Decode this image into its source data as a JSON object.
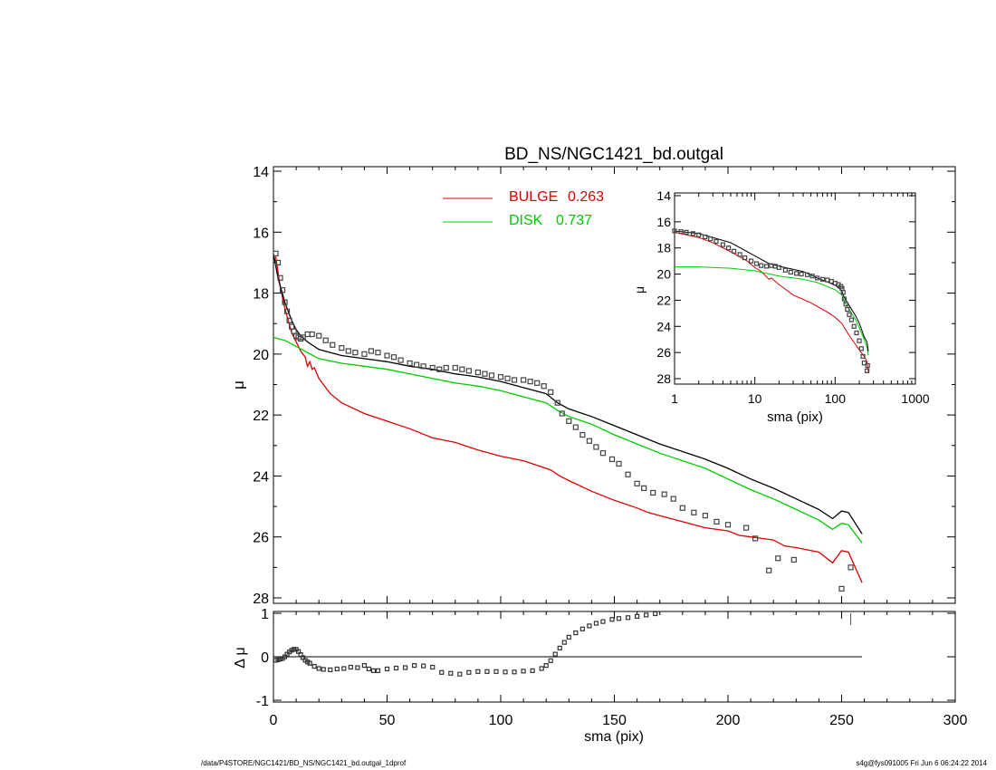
{
  "footer": {
    "path": "/data/P4STORE/NGC1421/BD_NS/NGC1421_bd.outgal_1dprof",
    "stamp": "s4g@fys091005  Fri Jun  6 06:24:22 2014"
  },
  "chart_data": [
    {
      "id": "main",
      "type": "line",
      "title": "BD_NS/NGC1421_bd.outgal",
      "xlabel": "",
      "ylabel": "μ",
      "xlim": [
        0,
        300
      ],
      "ylim": [
        28,
        14
      ],
      "y_inverted": true,
      "yticks": [
        14,
        16,
        18,
        20,
        22,
        24,
        26,
        28
      ],
      "grid": false,
      "legend_position": "top-center",
      "legend": [
        {
          "label": "BULGE",
          "value": "0.263",
          "color": "#dd0000"
        },
        {
          "label": "DISK",
          "value": "0.737",
          "color": "#00cc00"
        }
      ],
      "series": [
        {
          "name": "BULGE",
          "color": "#dd0000",
          "style": "line",
          "x": [
            1,
            3,
            5,
            8,
            10,
            12,
            14,
            15,
            16,
            17,
            18,
            20,
            25,
            30,
            40,
            50,
            60,
            70,
            80,
            90,
            100,
            110,
            122,
            126,
            130,
            140,
            150,
            160,
            165,
            170,
            180,
            190,
            200,
            205,
            210,
            215,
            220,
            225,
            230,
            240,
            246,
            250,
            253,
            259
          ],
          "y": [
            16.8,
            17.8,
            18.5,
            19.3,
            19.6,
            19.9,
            20.1,
            20.4,
            20.25,
            20.5,
            20.45,
            20.8,
            21.3,
            21.6,
            21.95,
            22.2,
            22.45,
            22.75,
            22.9,
            23.15,
            23.35,
            23.5,
            23.8,
            24.0,
            24.15,
            24.5,
            24.8,
            25.05,
            25.2,
            25.3,
            25.5,
            25.7,
            25.8,
            25.95,
            26.0,
            26.05,
            26.1,
            26.3,
            26.35,
            26.5,
            26.85,
            26.45,
            26.5,
            27.5
          ]
        },
        {
          "name": "DISK",
          "color": "#00cc00",
          "style": "line",
          "x": [
            0,
            5,
            10,
            15,
            20,
            30,
            40,
            50,
            60,
            70,
            80,
            90,
            100,
            110,
            120,
            125,
            130,
            140,
            150,
            160,
            170,
            180,
            190,
            200,
            210,
            220,
            230,
            240,
            246,
            250,
            253,
            259
          ],
          "y": [
            19.45,
            19.55,
            19.75,
            19.95,
            20.15,
            20.3,
            20.4,
            20.5,
            20.65,
            20.8,
            20.95,
            21.05,
            21.2,
            21.4,
            21.6,
            21.85,
            22.05,
            22.3,
            22.65,
            22.95,
            23.25,
            23.5,
            23.75,
            24.1,
            24.45,
            24.75,
            25.1,
            25.45,
            25.75,
            25.55,
            25.6,
            26.2
          ]
        },
        {
          "name": "",
          "color": "#000000",
          "style": "line",
          "x": [
            0,
            2,
            5,
            8,
            10,
            12,
            15,
            20,
            30,
            40,
            50,
            60,
            70,
            80,
            90,
            100,
            110,
            120,
            125,
            130,
            140,
            150,
            160,
            170,
            180,
            190,
            200,
            210,
            220,
            230,
            240,
            246,
            250,
            253,
            259
          ],
          "y": [
            16.7,
            17.5,
            18.3,
            18.9,
            19.2,
            19.4,
            19.6,
            19.85,
            20.05,
            20.15,
            20.25,
            20.4,
            20.5,
            20.65,
            20.75,
            20.9,
            21.1,
            21.3,
            21.6,
            21.8,
            22.05,
            22.35,
            22.65,
            22.95,
            23.2,
            23.45,
            23.75,
            24.1,
            24.4,
            24.75,
            25.1,
            25.4,
            25.15,
            25.2,
            25.9
          ]
        },
        {
          "name": "",
          "color": "#444444",
          "style": "markers",
          "x": [
            1,
            2,
            3,
            4,
            5,
            6,
            7,
            8,
            9,
            10,
            11,
            12,
            13,
            15,
            17,
            20,
            23,
            26,
            30,
            33,
            36,
            40,
            43,
            46,
            50,
            53,
            56,
            60,
            63,
            66,
            70,
            73,
            76,
            80,
            83,
            86,
            90,
            93,
            96,
            100,
            103,
            106,
            110,
            113,
            116,
            119,
            122,
            125,
            127,
            130,
            133,
            136,
            139,
            142,
            145,
            149,
            152,
            156,
            160,
            163,
            167,
            172,
            176,
            180,
            185,
            190,
            195,
            200,
            208,
            212,
            218,
            222,
            229,
            250,
            254
          ],
          "y": [
            16.7,
            17.0,
            17.5,
            17.9,
            18.3,
            18.6,
            18.9,
            19.1,
            19.25,
            19.4,
            19.45,
            19.5,
            19.45,
            19.35,
            19.35,
            19.4,
            19.55,
            19.7,
            19.8,
            19.9,
            19.95,
            20.0,
            19.9,
            19.95,
            20.05,
            20.1,
            20.2,
            20.3,
            20.35,
            20.4,
            20.45,
            20.5,
            20.45,
            20.45,
            20.5,
            20.55,
            20.6,
            20.65,
            20.7,
            20.75,
            20.8,
            20.85,
            20.85,
            20.9,
            20.95,
            21.05,
            21.25,
            21.6,
            21.95,
            22.2,
            22.4,
            22.65,
            22.85,
            23.05,
            23.25,
            23.45,
            23.6,
            23.95,
            24.25,
            24.4,
            24.55,
            24.6,
            24.75,
            25.05,
            25.2,
            25.3,
            25.5,
            25.6,
            25.7,
            26.05,
            27.1,
            26.7,
            26.75,
            27.7,
            27.0
          ]
        }
      ]
    },
    {
      "id": "residual",
      "type": "scatter",
      "xlabel": "sma (pix)",
      "ylabel": "Δ μ",
      "xlim": [
        0,
        300
      ],
      "ylim": [
        -1,
        1
      ],
      "xticks": [
        0,
        50,
        100,
        150,
        200,
        250,
        300
      ],
      "yticks": [
        -1,
        0,
        1
      ],
      "zero_line": {
        "from": 0,
        "to": 259
      },
      "grid": false,
      "x": [
        1,
        2,
        3,
        4,
        5,
        6,
        7,
        8,
        9,
        10,
        11,
        12,
        13,
        14,
        15,
        16,
        18,
        20,
        22,
        25,
        28,
        31,
        34,
        37,
        40,
        42,
        44,
        46,
        50,
        54,
        58,
        62,
        66,
        70,
        74,
        78,
        82,
        86,
        90,
        94,
        98,
        102,
        106,
        110,
        114,
        118,
        120,
        122,
        124,
        126,
        128,
        130,
        133,
        136,
        139,
        142,
        145,
        149,
        152,
        156,
        160,
        164,
        168
      ],
      "y": [
        -0.08,
        -0.07,
        -0.05,
        -0.04,
        0.0,
        0.06,
        0.11,
        0.15,
        0.17,
        0.17,
        0.12,
        0.05,
        -0.02,
        -0.08,
        -0.12,
        -0.15,
        -0.22,
        -0.27,
        -0.29,
        -0.3,
        -0.28,
        -0.27,
        -0.24,
        -0.25,
        -0.2,
        -0.28,
        -0.32,
        -0.32,
        -0.28,
        -0.26,
        -0.25,
        -0.2,
        -0.21,
        -0.24,
        -0.36,
        -0.38,
        -0.4,
        -0.36,
        -0.34,
        -0.34,
        -0.34,
        -0.35,
        -0.35,
        -0.33,
        -0.32,
        -0.27,
        -0.2,
        -0.09,
        0.06,
        0.2,
        0.33,
        0.45,
        0.55,
        0.64,
        0.71,
        0.77,
        0.81,
        0.86,
        0.88,
        0.9,
        0.93,
        0.96,
        0.99
      ]
    },
    {
      "id": "inset",
      "type": "line",
      "xscale": "log",
      "xlabel": "sma (pix)",
      "ylabel": "μ",
      "xlim": [
        1,
        1000
      ],
      "ylim": [
        28,
        14
      ],
      "y_inverted": true,
      "xticks": [
        1,
        10,
        100,
        1000
      ],
      "yticks": [
        14,
        16,
        18,
        20,
        22,
        24,
        26,
        28
      ],
      "grid": false,
      "series": [
        {
          "name": "BULGE",
          "color": "#dd0000",
          "style": "line",
          "x": [
            1,
            2,
            3,
            5,
            8,
            10,
            12,
            14,
            15,
            16,
            20,
            30,
            50,
            80,
            100,
            122,
            150,
            180,
            200,
            230,
            250,
            259
          ],
          "y": [
            16.8,
            17.2,
            17.6,
            18.3,
            19.0,
            19.5,
            19.8,
            20.2,
            20.4,
            20.3,
            20.8,
            21.6,
            22.2,
            22.9,
            23.3,
            23.8,
            24.7,
            25.4,
            25.8,
            26.3,
            26.7,
            27.5
          ]
        },
        {
          "name": "DISK",
          "color": "#00cc00",
          "style": "line",
          "x": [
            1,
            2,
            5,
            10,
            20,
            40,
            60,
            80,
            100,
            110,
            122,
            130,
            150,
            180,
            200,
            230,
            250,
            259
          ],
          "y": [
            19.45,
            19.45,
            19.55,
            19.75,
            20.15,
            20.4,
            20.65,
            20.95,
            21.2,
            21.4,
            21.6,
            22.1,
            22.7,
            23.5,
            24.1,
            25.0,
            25.6,
            26.2
          ]
        },
        {
          "name": "",
          "color": "#000000",
          "style": "line",
          "x": [
            1,
            2,
            5,
            10,
            15,
            20,
            40,
            60,
            80,
            100,
            120,
            130,
            150,
            180,
            200,
            230,
            250,
            259
          ],
          "y": [
            16.7,
            16.9,
            17.6,
            18.6,
            19.2,
            19.4,
            19.8,
            20.3,
            20.6,
            20.85,
            21.25,
            21.8,
            22.4,
            23.2,
            23.75,
            24.8,
            25.2,
            25.9
          ]
        },
        {
          "name": "",
          "color": "#444444",
          "style": "markers",
          "x": [
            1,
            1.2,
            1.4,
            1.7,
            2,
            2.4,
            2.8,
            3.3,
            4,
            4.7,
            5.5,
            6.5,
            7.5,
            9,
            10.5,
            12,
            14,
            16,
            18,
            20,
            24,
            28,
            33,
            38,
            45,
            52,
            60,
            70,
            80,
            90,
            100,
            110,
            118,
            122,
            126,
            130,
            136,
            142,
            150,
            160,
            172,
            185,
            200,
            212,
            222,
            230,
            250,
            254
          ],
          "y": [
            16.7,
            16.75,
            16.8,
            16.9,
            17.0,
            17.15,
            17.3,
            17.5,
            17.75,
            18.0,
            18.25,
            18.5,
            18.75,
            19.0,
            19.2,
            19.35,
            19.4,
            19.35,
            19.4,
            19.5,
            19.7,
            19.85,
            19.95,
            20.0,
            20.05,
            20.15,
            20.3,
            20.4,
            20.45,
            20.55,
            20.7,
            20.8,
            20.95,
            21.1,
            21.4,
            21.9,
            22.3,
            22.7,
            23.1,
            23.5,
            24.0,
            24.5,
            25.1,
            25.7,
            26.3,
            26.8,
            27.4,
            27.0
          ]
        }
      ]
    }
  ]
}
